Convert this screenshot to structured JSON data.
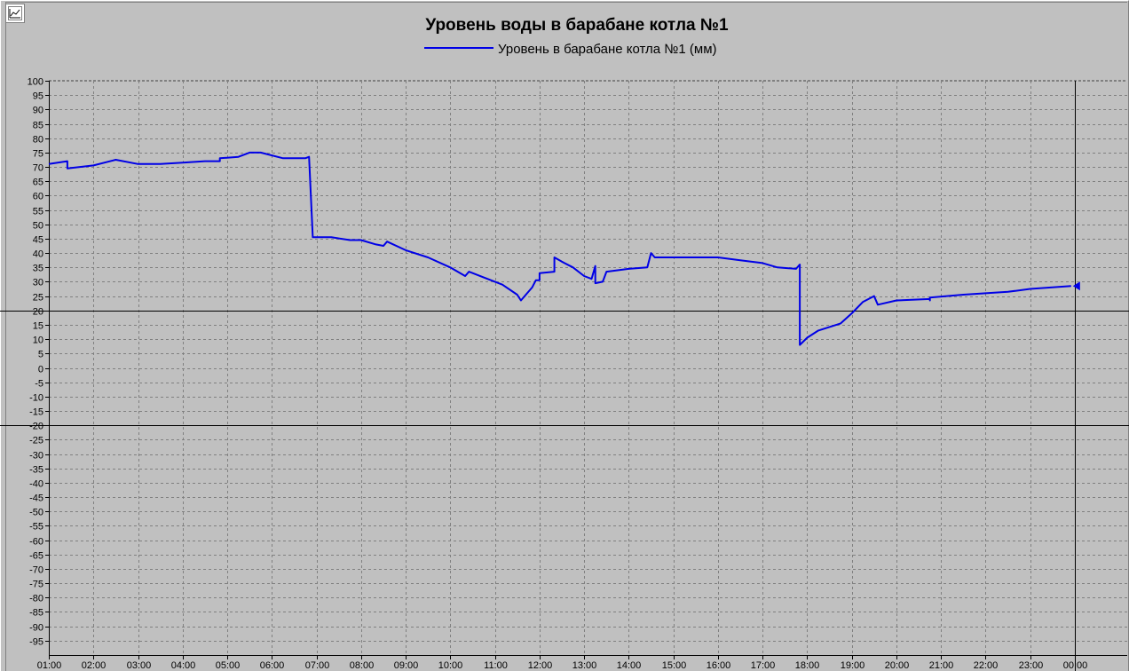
{
  "chart_data": {
    "type": "line",
    "title": "Уровень воды в барабане котла №1",
    "series": [
      {
        "name": "Уровень в барабане котла №1 (мм)",
        "color": "#0000e6",
        "points": [
          [
            "01:00",
            71
          ],
          [
            "01:25",
            72
          ],
          [
            "01:25",
            69.5
          ],
          [
            "02:00",
            70.5
          ],
          [
            "02:30",
            72.5
          ],
          [
            "03:00",
            71
          ],
          [
            "03:30",
            71
          ],
          [
            "04:00",
            71.5
          ],
          [
            "04:30",
            72
          ],
          [
            "04:50",
            72
          ],
          [
            "04:50",
            73
          ],
          [
            "05:15",
            73.5
          ],
          [
            "05:30",
            75
          ],
          [
            "05:45",
            75
          ],
          [
            "06:15",
            73
          ],
          [
            "06:45",
            73
          ],
          [
            "06:50",
            73.5
          ],
          [
            "06:55",
            45.5
          ],
          [
            "07:20",
            45.5
          ],
          [
            "07:45",
            44.5
          ],
          [
            "08:00",
            44.5
          ],
          [
            "08:20",
            43
          ],
          [
            "08:30",
            42.5
          ],
          [
            "08:35",
            44
          ],
          [
            "09:00",
            41
          ],
          [
            "09:30",
            38.5
          ],
          [
            "10:00",
            35
          ],
          [
            "10:20",
            32
          ],
          [
            "10:25",
            33.5
          ],
          [
            "10:45",
            31.5
          ],
          [
            "11:10",
            29
          ],
          [
            "11:30",
            25.5
          ],
          [
            "11:35",
            23.5
          ],
          [
            "11:50",
            28
          ],
          [
            "11:55",
            30.5
          ],
          [
            "12:00",
            30.5
          ],
          [
            "12:00",
            33
          ],
          [
            "12:20",
            33.5
          ],
          [
            "12:20",
            38.5
          ],
          [
            "12:30",
            37
          ],
          [
            "12:45",
            35
          ],
          [
            "13:00",
            32
          ],
          [
            "13:10",
            31
          ],
          [
            "13:15",
            35.5
          ],
          [
            "13:15",
            29.5
          ],
          [
            "13:25",
            30
          ],
          [
            "13:30",
            33.5
          ],
          [
            "14:00",
            34.5
          ],
          [
            "14:25",
            35
          ],
          [
            "14:30",
            40
          ],
          [
            "14:35",
            38.5
          ],
          [
            "15:00",
            38.5
          ],
          [
            "15:30",
            38.5
          ],
          [
            "16:00",
            38.5
          ],
          [
            "16:30",
            37.5
          ],
          [
            "17:00",
            36.5
          ],
          [
            "17:20",
            35
          ],
          [
            "17:45",
            34.5
          ],
          [
            "17:50",
            36
          ],
          [
            "17:50",
            8
          ],
          [
            "18:00",
            10.5
          ],
          [
            "18:15",
            13
          ],
          [
            "18:45",
            15.5
          ],
          [
            "19:00",
            19
          ],
          [
            "19:15",
            23
          ],
          [
            "19:30",
            25
          ],
          [
            "19:35",
            22
          ],
          [
            "20:00",
            23.5
          ],
          [
            "20:45",
            24
          ],
          [
            "20:45",
            23.5
          ],
          [
            "20:45",
            24.5
          ],
          [
            "21:30",
            25.5
          ],
          [
            "22:00",
            26
          ],
          [
            "22:30",
            26.5
          ],
          [
            "23:00",
            27.5
          ],
          [
            "23:55",
            28.5
          ]
        ]
      }
    ],
    "x_ticks": [
      "01:00",
      "02:00",
      "03:00",
      "04:00",
      "05:00",
      "06:00",
      "07:00",
      "08:00",
      "09:00",
      "10:00",
      "11:00",
      "12:00",
      "13:00",
      "14:00",
      "15:00",
      "16:00",
      "17:00",
      "18:00",
      "19:00",
      "20:00",
      "21:00",
      "22:00",
      "23:00",
      "00:00"
    ],
    "y_ticks": [
      100,
      95,
      90,
      85,
      80,
      75,
      70,
      65,
      60,
      55,
      50,
      45,
      40,
      35,
      30,
      25,
      20,
      15,
      10,
      5,
      0,
      -5,
      -10,
      -15,
      -20,
      -25,
      -30,
      -35,
      -40,
      -45,
      -50,
      -55,
      -60,
      -65,
      -70,
      -75,
      -80,
      -85,
      -90,
      -95
    ],
    "ylim": [
      -100,
      100
    ],
    "limit_lines": [
      20,
      -20
    ],
    "grid": true,
    "legend_position": "top-center",
    "colors": {
      "background": "#c0c0c0",
      "grid": "#808080",
      "series": "#0000e6",
      "limit": "#000000"
    }
  },
  "toolbar": {
    "icon": "chart-icon"
  }
}
